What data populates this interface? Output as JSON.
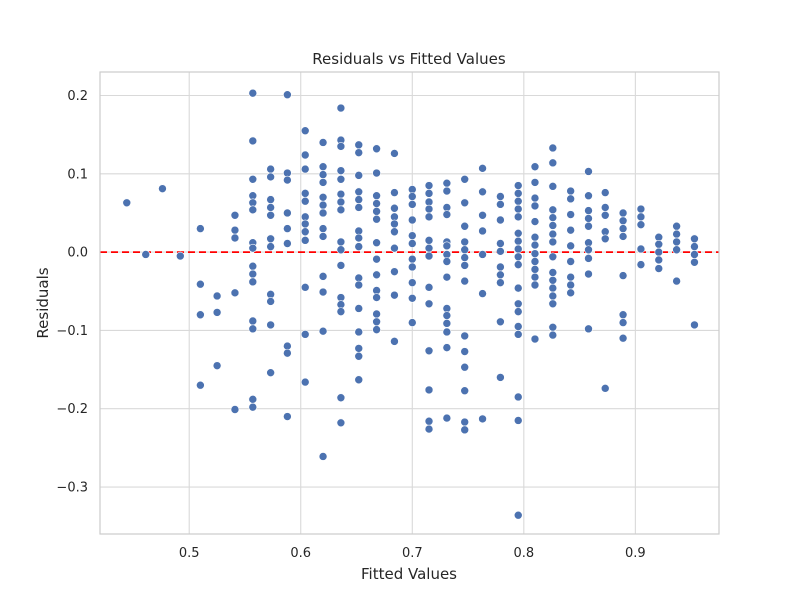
{
  "chart_data": {
    "type": "scatter",
    "title": "Residuals vs Fitted Values",
    "xlabel": "Fitted Values",
    "ylabel": "Residuals",
    "xlim": [
      0.42,
      0.975
    ],
    "ylim": [
      -0.36,
      0.23
    ],
    "xticks": [
      0.5,
      0.6,
      0.7,
      0.8,
      0.9
    ],
    "xtick_labels": [
      "0.5",
      "0.6",
      "0.7",
      "0.8",
      "0.9"
    ],
    "yticks": [
      -0.3,
      -0.2,
      -0.1,
      0.0,
      0.1,
      0.2
    ],
    "ytick_labels": [
      "−0.3",
      "−0.2",
      "−0.1",
      "0.0",
      "0.1",
      "0.2"
    ],
    "grid": true,
    "reference_line": {
      "y": 0.0,
      "style": "dashed",
      "color": "#ff0000"
    },
    "point_color": "#4c72b0",
    "points": [
      {
        "x": 0.444,
        "y": 0.063
      },
      {
        "x": 0.461,
        "y": -0.003
      },
      {
        "x": 0.476,
        "y": 0.081
      },
      {
        "x": 0.492,
        "y": -0.005
      },
      {
        "x": 0.51,
        "y": 0.03
      },
      {
        "x": 0.51,
        "y": -0.041
      },
      {
        "x": 0.51,
        "y": -0.08
      },
      {
        "x": 0.51,
        "y": -0.17
      },
      {
        "x": 0.525,
        "y": -0.056
      },
      {
        "x": 0.525,
        "y": -0.077
      },
      {
        "x": 0.525,
        "y": -0.145
      },
      {
        "x": 0.541,
        "y": 0.047
      },
      {
        "x": 0.541,
        "y": 0.028
      },
      {
        "x": 0.541,
        "y": 0.018
      },
      {
        "x": 0.541,
        "y": -0.052
      },
      {
        "x": 0.541,
        "y": -0.201
      },
      {
        "x": 0.557,
        "y": 0.203
      },
      {
        "x": 0.557,
        "y": 0.142
      },
      {
        "x": 0.557,
        "y": 0.093
      },
      {
        "x": 0.557,
        "y": 0.072
      },
      {
        "x": 0.557,
        "y": 0.063
      },
      {
        "x": 0.557,
        "y": 0.054
      },
      {
        "x": 0.557,
        "y": 0.012
      },
      {
        "x": 0.557,
        "y": 0.005
      },
      {
        "x": 0.557,
        "y": -0.018
      },
      {
        "x": 0.557,
        "y": -0.028
      },
      {
        "x": 0.557,
        "y": -0.038
      },
      {
        "x": 0.557,
        "y": -0.088
      },
      {
        "x": 0.557,
        "y": -0.098
      },
      {
        "x": 0.557,
        "y": -0.188
      },
      {
        "x": 0.557,
        "y": -0.198
      },
      {
        "x": 0.573,
        "y": 0.106
      },
      {
        "x": 0.573,
        "y": 0.096
      },
      {
        "x": 0.573,
        "y": 0.067
      },
      {
        "x": 0.573,
        "y": 0.057
      },
      {
        "x": 0.573,
        "y": 0.047
      },
      {
        "x": 0.573,
        "y": 0.017
      },
      {
        "x": 0.573,
        "y": 0.007
      },
      {
        "x": 0.573,
        "y": -0.054
      },
      {
        "x": 0.573,
        "y": -0.063
      },
      {
        "x": 0.573,
        "y": -0.093
      },
      {
        "x": 0.573,
        "y": -0.154
      },
      {
        "x": 0.588,
        "y": 0.201
      },
      {
        "x": 0.588,
        "y": 0.101
      },
      {
        "x": 0.588,
        "y": 0.092
      },
      {
        "x": 0.588,
        "y": 0.05
      },
      {
        "x": 0.588,
        "y": 0.03
      },
      {
        "x": 0.588,
        "y": 0.011
      },
      {
        "x": 0.588,
        "y": -0.12
      },
      {
        "x": 0.588,
        "y": -0.129
      },
      {
        "x": 0.588,
        "y": -0.21
      },
      {
        "x": 0.604,
        "y": 0.155
      },
      {
        "x": 0.604,
        "y": 0.124
      },
      {
        "x": 0.604,
        "y": 0.106
      },
      {
        "x": 0.604,
        "y": 0.075
      },
      {
        "x": 0.604,
        "y": 0.065
      },
      {
        "x": 0.604,
        "y": 0.045
      },
      {
        "x": 0.604,
        "y": 0.036
      },
      {
        "x": 0.604,
        "y": 0.026
      },
      {
        "x": 0.604,
        "y": 0.015
      },
      {
        "x": 0.604,
        "y": -0.045
      },
      {
        "x": 0.604,
        "y": -0.105
      },
      {
        "x": 0.604,
        "y": -0.166
      },
      {
        "x": 0.62,
        "y": 0.14
      },
      {
        "x": 0.62,
        "y": 0.109
      },
      {
        "x": 0.62,
        "y": 0.099
      },
      {
        "x": 0.62,
        "y": 0.089
      },
      {
        "x": 0.62,
        "y": 0.07
      },
      {
        "x": 0.62,
        "y": 0.06
      },
      {
        "x": 0.62,
        "y": 0.05
      },
      {
        "x": 0.62,
        "y": 0.03
      },
      {
        "x": 0.62,
        "y": 0.02
      },
      {
        "x": 0.62,
        "y": -0.031
      },
      {
        "x": 0.62,
        "y": -0.051
      },
      {
        "x": 0.62,
        "y": -0.101
      },
      {
        "x": 0.62,
        "y": -0.261
      },
      {
        "x": 0.636,
        "y": 0.184
      },
      {
        "x": 0.636,
        "y": 0.143
      },
      {
        "x": 0.636,
        "y": 0.135
      },
      {
        "x": 0.636,
        "y": 0.104
      },
      {
        "x": 0.636,
        "y": 0.093
      },
      {
        "x": 0.636,
        "y": 0.074
      },
      {
        "x": 0.636,
        "y": 0.064
      },
      {
        "x": 0.636,
        "y": 0.054
      },
      {
        "x": 0.636,
        "y": 0.013
      },
      {
        "x": 0.636,
        "y": 0.003
      },
      {
        "x": 0.636,
        "y": -0.017
      },
      {
        "x": 0.636,
        "y": -0.058
      },
      {
        "x": 0.636,
        "y": -0.067
      },
      {
        "x": 0.636,
        "y": -0.076
      },
      {
        "x": 0.636,
        "y": -0.186
      },
      {
        "x": 0.636,
        "y": -0.218
      },
      {
        "x": 0.652,
        "y": 0.137
      },
      {
        "x": 0.652,
        "y": 0.127
      },
      {
        "x": 0.652,
        "y": 0.098
      },
      {
        "x": 0.652,
        "y": 0.077
      },
      {
        "x": 0.652,
        "y": 0.067
      },
      {
        "x": 0.652,
        "y": 0.057
      },
      {
        "x": 0.652,
        "y": 0.027
      },
      {
        "x": 0.652,
        "y": 0.018
      },
      {
        "x": 0.652,
        "y": 0.007
      },
      {
        "x": 0.652,
        "y": -0.033
      },
      {
        "x": 0.652,
        "y": -0.042
      },
      {
        "x": 0.652,
        "y": -0.072
      },
      {
        "x": 0.652,
        "y": -0.102
      },
      {
        "x": 0.652,
        "y": -0.123
      },
      {
        "x": 0.652,
        "y": -0.133
      },
      {
        "x": 0.652,
        "y": -0.163
      },
      {
        "x": 0.668,
        "y": 0.132
      },
      {
        "x": 0.668,
        "y": 0.101
      },
      {
        "x": 0.668,
        "y": 0.072
      },
      {
        "x": 0.668,
        "y": 0.062
      },
      {
        "x": 0.668,
        "y": 0.052
      },
      {
        "x": 0.668,
        "y": 0.042
      },
      {
        "x": 0.668,
        "y": 0.012
      },
      {
        "x": 0.668,
        "y": -0.009
      },
      {
        "x": 0.668,
        "y": -0.029
      },
      {
        "x": 0.668,
        "y": -0.049
      },
      {
        "x": 0.668,
        "y": -0.058
      },
      {
        "x": 0.668,
        "y": -0.079
      },
      {
        "x": 0.668,
        "y": -0.089
      },
      {
        "x": 0.668,
        "y": -0.099
      },
      {
        "x": 0.684,
        "y": 0.126
      },
      {
        "x": 0.684,
        "y": 0.076
      },
      {
        "x": 0.684,
        "y": 0.056
      },
      {
        "x": 0.684,
        "y": 0.045
      },
      {
        "x": 0.684,
        "y": 0.036
      },
      {
        "x": 0.684,
        "y": 0.026
      },
      {
        "x": 0.684,
        "y": 0.005
      },
      {
        "x": 0.684,
        "y": -0.025
      },
      {
        "x": 0.684,
        "y": -0.055
      },
      {
        "x": 0.684,
        "y": -0.114
      },
      {
        "x": 0.7,
        "y": 0.08
      },
      {
        "x": 0.7,
        "y": 0.071
      },
      {
        "x": 0.7,
        "y": 0.061
      },
      {
        "x": 0.7,
        "y": 0.041
      },
      {
        "x": 0.7,
        "y": 0.021
      },
      {
        "x": 0.7,
        "y": 0.011
      },
      {
        "x": 0.7,
        "y": -0.009
      },
      {
        "x": 0.7,
        "y": -0.019
      },
      {
        "x": 0.7,
        "y": -0.039
      },
      {
        "x": 0.7,
        "y": -0.059
      },
      {
        "x": 0.7,
        "y": -0.09
      },
      {
        "x": 0.715,
        "y": 0.085
      },
      {
        "x": 0.715,
        "y": 0.075
      },
      {
        "x": 0.715,
        "y": 0.064
      },
      {
        "x": 0.715,
        "y": 0.055
      },
      {
        "x": 0.715,
        "y": 0.045
      },
      {
        "x": 0.715,
        "y": 0.015
      },
      {
        "x": 0.715,
        "y": 0.005
      },
      {
        "x": 0.715,
        "y": -0.005
      },
      {
        "x": 0.715,
        "y": -0.045
      },
      {
        "x": 0.715,
        "y": -0.066
      },
      {
        "x": 0.715,
        "y": -0.126
      },
      {
        "x": 0.715,
        "y": -0.176
      },
      {
        "x": 0.715,
        "y": -0.216
      },
      {
        "x": 0.715,
        "y": -0.226
      },
      {
        "x": 0.731,
        "y": 0.088
      },
      {
        "x": 0.731,
        "y": 0.078
      },
      {
        "x": 0.731,
        "y": 0.057
      },
      {
        "x": 0.731,
        "y": 0.048
      },
      {
        "x": 0.731,
        "y": 0.013
      },
      {
        "x": 0.731,
        "y": 0.008
      },
      {
        "x": 0.731,
        "y": -0.003
      },
      {
        "x": 0.731,
        "y": -0.012
      },
      {
        "x": 0.731,
        "y": -0.032
      },
      {
        "x": 0.731,
        "y": -0.072
      },
      {
        "x": 0.731,
        "y": -0.081
      },
      {
        "x": 0.731,
        "y": -0.091
      },
      {
        "x": 0.731,
        "y": -0.102
      },
      {
        "x": 0.731,
        "y": -0.122
      },
      {
        "x": 0.731,
        "y": -0.212
      },
      {
        "x": 0.747,
        "y": 0.093
      },
      {
        "x": 0.747,
        "y": 0.063
      },
      {
        "x": 0.747,
        "y": 0.033
      },
      {
        "x": 0.747,
        "y": 0.013
      },
      {
        "x": 0.747,
        "y": 0.003
      },
      {
        "x": 0.747,
        "y": -0.007
      },
      {
        "x": 0.747,
        "y": -0.017
      },
      {
        "x": 0.747,
        "y": -0.037
      },
      {
        "x": 0.747,
        "y": -0.107
      },
      {
        "x": 0.747,
        "y": -0.127
      },
      {
        "x": 0.747,
        "y": -0.147
      },
      {
        "x": 0.747,
        "y": -0.177
      },
      {
        "x": 0.747,
        "y": -0.217
      },
      {
        "x": 0.747,
        "y": -0.227
      },
      {
        "x": 0.763,
        "y": 0.107
      },
      {
        "x": 0.763,
        "y": 0.077
      },
      {
        "x": 0.763,
        "y": 0.047
      },
      {
        "x": 0.763,
        "y": 0.027
      },
      {
        "x": 0.763,
        "y": -0.003
      },
      {
        "x": 0.763,
        "y": -0.053
      },
      {
        "x": 0.763,
        "y": -0.213
      },
      {
        "x": 0.779,
        "y": 0.071
      },
      {
        "x": 0.779,
        "y": 0.061
      },
      {
        "x": 0.779,
        "y": 0.041
      },
      {
        "x": 0.779,
        "y": 0.011
      },
      {
        "x": 0.779,
        "y": 0.001
      },
      {
        "x": 0.779,
        "y": -0.019
      },
      {
        "x": 0.779,
        "y": -0.029
      },
      {
        "x": 0.779,
        "y": -0.039
      },
      {
        "x": 0.779,
        "y": -0.089
      },
      {
        "x": 0.779,
        "y": -0.16
      },
      {
        "x": 0.795,
        "y": 0.085
      },
      {
        "x": 0.795,
        "y": 0.075
      },
      {
        "x": 0.795,
        "y": 0.065
      },
      {
        "x": 0.795,
        "y": 0.055
      },
      {
        "x": 0.795,
        "y": 0.045
      },
      {
        "x": 0.795,
        "y": 0.024
      },
      {
        "x": 0.795,
        "y": 0.014
      },
      {
        "x": 0.795,
        "y": 0.004
      },
      {
        "x": 0.795,
        "y": -0.006
      },
      {
        "x": 0.795,
        "y": -0.016
      },
      {
        "x": 0.795,
        "y": -0.046
      },
      {
        "x": 0.795,
        "y": -0.066
      },
      {
        "x": 0.795,
        "y": -0.076
      },
      {
        "x": 0.795,
        "y": -0.095
      },
      {
        "x": 0.795,
        "y": -0.105
      },
      {
        "x": 0.795,
        "y": -0.185
      },
      {
        "x": 0.795,
        "y": -0.215
      },
      {
        "x": 0.795,
        "y": -0.336
      },
      {
        "x": 0.81,
        "y": 0.109
      },
      {
        "x": 0.81,
        "y": 0.089
      },
      {
        "x": 0.81,
        "y": 0.069
      },
      {
        "x": 0.81,
        "y": 0.059
      },
      {
        "x": 0.81,
        "y": 0.039
      },
      {
        "x": 0.81,
        "y": 0.019
      },
      {
        "x": 0.81,
        "y": 0.009
      },
      {
        "x": 0.81,
        "y": -0.002
      },
      {
        "x": 0.81,
        "y": -0.012
      },
      {
        "x": 0.81,
        "y": -0.022
      },
      {
        "x": 0.81,
        "y": -0.032
      },
      {
        "x": 0.81,
        "y": -0.042
      },
      {
        "x": 0.81,
        "y": -0.111
      },
      {
        "x": 0.826,
        "y": 0.133
      },
      {
        "x": 0.826,
        "y": 0.114
      },
      {
        "x": 0.826,
        "y": 0.084
      },
      {
        "x": 0.826,
        "y": 0.054
      },
      {
        "x": 0.826,
        "y": 0.044
      },
      {
        "x": 0.826,
        "y": 0.034
      },
      {
        "x": 0.826,
        "y": 0.023
      },
      {
        "x": 0.826,
        "y": 0.013
      },
      {
        "x": 0.826,
        "y": -0.006
      },
      {
        "x": 0.826,
        "y": -0.026
      },
      {
        "x": 0.826,
        "y": -0.036
      },
      {
        "x": 0.826,
        "y": -0.046
      },
      {
        "x": 0.826,
        "y": -0.056
      },
      {
        "x": 0.826,
        "y": -0.066
      },
      {
        "x": 0.826,
        "y": -0.096
      },
      {
        "x": 0.826,
        "y": -0.106
      },
      {
        "x": 0.842,
        "y": 0.078
      },
      {
        "x": 0.842,
        "y": 0.068
      },
      {
        "x": 0.842,
        "y": 0.048
      },
      {
        "x": 0.842,
        "y": 0.028
      },
      {
        "x": 0.842,
        "y": 0.008
      },
      {
        "x": 0.842,
        "y": -0.012
      },
      {
        "x": 0.842,
        "y": -0.032
      },
      {
        "x": 0.842,
        "y": -0.042
      },
      {
        "x": 0.842,
        "y": -0.052
      },
      {
        "x": 0.858,
        "y": 0.103
      },
      {
        "x": 0.858,
        "y": 0.072
      },
      {
        "x": 0.858,
        "y": 0.053
      },
      {
        "x": 0.858,
        "y": 0.043
      },
      {
        "x": 0.858,
        "y": 0.033
      },
      {
        "x": 0.858,
        "y": 0.012
      },
      {
        "x": 0.858,
        "y": 0.003
      },
      {
        "x": 0.858,
        "y": -0.008
      },
      {
        "x": 0.858,
        "y": -0.028
      },
      {
        "x": 0.858,
        "y": -0.098
      },
      {
        "x": 0.873,
        "y": 0.076
      },
      {
        "x": 0.873,
        "y": 0.057
      },
      {
        "x": 0.873,
        "y": 0.047
      },
      {
        "x": 0.873,
        "y": 0.026
      },
      {
        "x": 0.873,
        "y": 0.017
      },
      {
        "x": 0.873,
        "y": -0.174
      },
      {
        "x": 0.889,
        "y": 0.05
      },
      {
        "x": 0.889,
        "y": 0.04
      },
      {
        "x": 0.889,
        "y": 0.03
      },
      {
        "x": 0.889,
        "y": 0.02
      },
      {
        "x": 0.889,
        "y": -0.03
      },
      {
        "x": 0.889,
        "y": -0.08
      },
      {
        "x": 0.889,
        "y": -0.09
      },
      {
        "x": 0.889,
        "y": -0.11
      },
      {
        "x": 0.905,
        "y": 0.055
      },
      {
        "x": 0.905,
        "y": 0.045
      },
      {
        "x": 0.905,
        "y": 0.035
      },
      {
        "x": 0.905,
        "y": 0.004
      },
      {
        "x": 0.905,
        "y": -0.016
      },
      {
        "x": 0.921,
        "y": 0.019
      },
      {
        "x": 0.921,
        "y": 0.01
      },
      {
        "x": 0.921,
        "y": 0.0
      },
      {
        "x": 0.921,
        "y": -0.01
      },
      {
        "x": 0.921,
        "y": -0.021
      },
      {
        "x": 0.937,
        "y": 0.033
      },
      {
        "x": 0.937,
        "y": 0.023
      },
      {
        "x": 0.937,
        "y": 0.013
      },
      {
        "x": 0.937,
        "y": 0.003
      },
      {
        "x": 0.937,
        "y": -0.037
      },
      {
        "x": 0.953,
        "y": 0.017
      },
      {
        "x": 0.953,
        "y": 0.007
      },
      {
        "x": 0.953,
        "y": -0.003
      },
      {
        "x": 0.953,
        "y": -0.013
      },
      {
        "x": 0.953,
        "y": -0.093
      }
    ]
  }
}
